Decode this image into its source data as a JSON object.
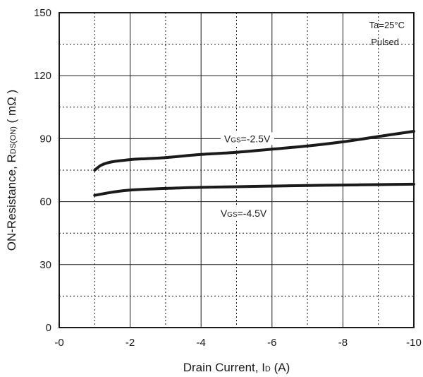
{
  "chart_data": {
    "type": "line",
    "xlabel": {
      "main": "Drain Current, I",
      "sub": "D",
      "unit": " (A)"
    },
    "ylabel": {
      "main": "ON-Resistance, R",
      "sub": "DS(ON)",
      "unit": " ( mΩ )"
    },
    "xlim": [
      0,
      -10
    ],
    "ylim": [
      0,
      150
    ],
    "x_ticks": [
      0,
      -2,
      -4,
      -6,
      -8,
      -10
    ],
    "x_tick_labels": [
      "-0",
      "-2",
      "-4",
      "-6",
      "-8",
      "-10"
    ],
    "y_ticks": [
      0,
      30,
      60,
      90,
      120,
      150
    ],
    "y_tick_labels": [
      "0",
      "30",
      "60",
      "90",
      "120",
      "150"
    ],
    "minor_x_grid": [
      -1,
      -3,
      -5,
      -7,
      -9
    ],
    "minor_y_grid": [
      15,
      45,
      75,
      105,
      135
    ],
    "grid": true,
    "conditions": [
      "Ta=25°C",
      "Pulsed"
    ],
    "series": [
      {
        "name_main": "V",
        "name_sub": "GS",
        "name_value": "=-2.5V",
        "x": [
          -1,
          -1.2,
          -1.5,
          -2,
          -2.5,
          -3,
          -4,
          -5,
          -6,
          -7,
          -8,
          -9,
          -10
        ],
        "y": [
          75,
          77.5,
          79,
          80,
          80.5,
          81,
          82.5,
          83.5,
          85,
          86.5,
          88.5,
          91,
          93.5
        ]
      },
      {
        "name_main": "V",
        "name_sub": "GS",
        "name_value": "=-4.5V",
        "x": [
          -1,
          -1.5,
          -2,
          -3,
          -4,
          -5,
          -6,
          -7,
          -8,
          -9,
          -10
        ],
        "y": [
          63,
          64.5,
          65.5,
          66.3,
          66.8,
          67.1,
          67.4,
          67.7,
          67.9,
          68.1,
          68.3
        ]
      }
    ]
  }
}
